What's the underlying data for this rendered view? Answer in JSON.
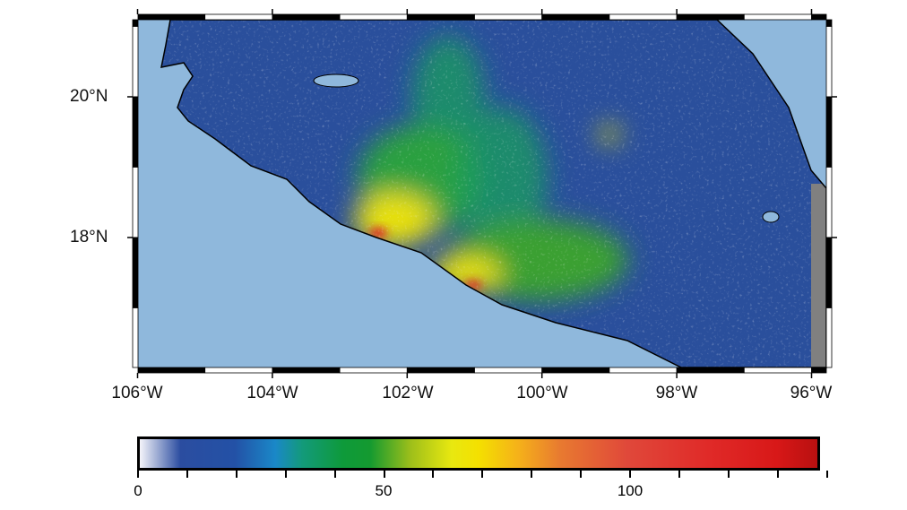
{
  "map": {
    "x_tick_labels": [
      "106°W",
      "104°W",
      "102°W",
      "100°W",
      "98°W",
      "96°W"
    ],
    "y_tick_labels": [
      "20°N",
      "18°N"
    ],
    "colors": {
      "ocean": "#8fb8dc",
      "land_low": "#2a4f9c",
      "no_data": "#808080"
    }
  },
  "colorbar": {
    "range": [
      0,
      140
    ],
    "major_tick_labels": [
      "0",
      "50",
      "100"
    ],
    "minor_tick_step": 10,
    "colormap": [
      "#f4f4fa",
      "#2b4da0",
      "#1a88c8",
      "#0e9a3a",
      "#f4e000",
      "#e87a30",
      "#e02a28",
      "#b81010"
    ]
  }
}
